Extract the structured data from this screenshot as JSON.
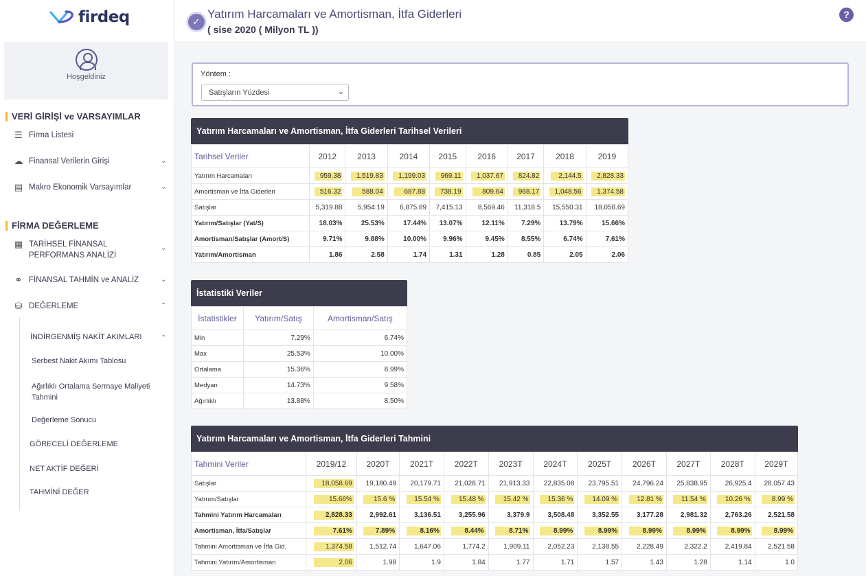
{
  "brand": {
    "name": "firdeq"
  },
  "welcome": {
    "text": "Hoşgeldiniz"
  },
  "sidebar": {
    "section1": "VERİ GİRİŞİ ve VARSAYIMLAR",
    "firm_list": "Firma Listesi",
    "financial_input": "Finansal Verilerin Girişi",
    "macro": "Makro Ekonomik Varsayımlar",
    "section2": "FİRMA DEĞERLEME",
    "historical_line1": "TARİHSEL FİNANSAL",
    "historical_line2": "PERFORMANS ANALİZİ",
    "forecast": "FİNANSAL TAHMİN ve ANALİZ",
    "valuation": "DEĞERLEME",
    "dcf": "İNDİRGENMİŞ NAKİT AKIMLARI",
    "fcf_table": "Serbest Nakit Akımı Tablosu",
    "wacc_line1": "Ağırlıklı Ortalama Sermaye Maliyeti",
    "wacc_line2": "Tahmini",
    "valuation_result": "Değerleme Sonucu",
    "relative": "GÖRECELİ DEĞERLEME",
    "net_asset": "NET AKTİF DEĞERİ",
    "estimated": "TAHMİNİ DEĞER"
  },
  "header": {
    "title": "Yatırım Harcamaları ve Amortisman, İtfa Giderleri",
    "subtitle": "( sise 2020 ( Milyon TL ))"
  },
  "method": {
    "label": "Yöntem :",
    "selected": "Satışların Yüzdesi"
  },
  "historical": {
    "title": "Yatırım Harcamaları ve Amortisman, İtfa Giderleri Tarihsel Verileri",
    "col0": "Tarihsel Veriler",
    "years": [
      "2012",
      "2013",
      "2014",
      "2015",
      "2016",
      "2017",
      "2018",
      "2019"
    ],
    "rows": [
      {
        "label": "Yatırım Harcamaları",
        "values": [
          "959.38",
          "1,519.83",
          "1,199.03",
          "969.11",
          "1,037.67",
          "824.82",
          "2,144.5",
          "2,828.33"
        ]
      },
      {
        "label": "Amortisman ve İtfa Giderleri",
        "values": [
          "516.32",
          "588.04",
          "687.88",
          "738.19",
          "809.64",
          "968.17",
          "1,048.56",
          "1,374.58"
        ]
      },
      {
        "label": "Satışlar",
        "values": [
          "5,319.88",
          "5,954.19",
          "6,875.89",
          "7,415.13",
          "8,569.46",
          "11,318.5",
          "15,550.31",
          "18,058.69"
        ]
      },
      {
        "label": "Yatırım/Satışlar (Yat/S)",
        "values": [
          "18.03%",
          "25.53%",
          "17.44%",
          "13.07%",
          "12.11%",
          "7.29%",
          "13.79%",
          "15.66%"
        ]
      },
      {
        "label": "Amortisman/Satışlar (Amort/S)",
        "values": [
          "9.71%",
          "9.88%",
          "10.00%",
          "9.96%",
          "9.45%",
          "8.55%",
          "6.74%",
          "7.61%"
        ]
      },
      {
        "label": "Yatırım/Amortisman",
        "values": [
          "1.86",
          "2.58",
          "1.74",
          "1.31",
          "1.28",
          "0.85",
          "2.05",
          "2.06"
        ]
      }
    ]
  },
  "stats": {
    "title": "İstatistiki Veriler",
    "headers": [
      "İstatistikler",
      "Yatırım/Satış",
      "Amortisman/Satış"
    ],
    "rows": [
      {
        "label": "Min",
        "a": "7.29%",
        "b": "6.74%"
      },
      {
        "label": "Max",
        "a": "25.53%",
        "b": "10.00%"
      },
      {
        "label": "Ortalama",
        "a": "15.36%",
        "b": "8.99%"
      },
      {
        "label": "Medyan",
        "a": "14.73%",
        "b": "9.58%"
      },
      {
        "label": "Ağırlıklı",
        "a": "13.88%",
        "b": "8.50%"
      }
    ]
  },
  "forecast": {
    "title": "Yatırım Harcamaları ve Amortisman, İtfa Giderleri Tahmini",
    "col0": "Tahmini Veriler",
    "years": [
      "2019/12",
      "2020T",
      "2021T",
      "2022T",
      "2023T",
      "2024T",
      "2025T",
      "2026T",
      "2027T",
      "2028T",
      "2029T"
    ],
    "rows": [
      {
        "label": "Satışlar",
        "values": [
          "18,058.69",
          "19,180.49",
          "20,179.71",
          "21,028.71",
          "21,913.33",
          "22,835.08",
          "23,795.51",
          "24,796.24",
          "25,838.95",
          "26,925.4",
          "28,057.43"
        ]
      },
      {
        "label": "Yatırım/Satışlar",
        "values": [
          "15.66%",
          "15.6 %",
          "15.54 %",
          "15.48 %",
          "15.42 %",
          "15.36 %",
          "14.09 %",
          "12.81 %",
          "11.54 %",
          "10.26 %",
          "8.99 %"
        ]
      },
      {
        "label": "Tahmini Yatırım Harcamaları",
        "values": [
          "2,828.33",
          "2,992.61",
          "3,136.51",
          "3,255.96",
          "3,379.9",
          "3,508.48",
          "3,352.55",
          "3,177.28",
          "2,981.32",
          "2,763.26",
          "2,521.58"
        ]
      },
      {
        "label": "Amortisman, İtfa/Satışlar",
        "values": [
          "7.61%",
          "7.89%",
          "8.16%",
          "8.44%",
          "8.71%",
          "8.99%",
          "8.99%",
          "8.99%",
          "8.99%",
          "8.99%",
          "8.99%"
        ]
      },
      {
        "label": "Tahmini Amortisman ve İtfa Gid.",
        "values": [
          "1,374.58",
          "1,512.74",
          "1,647.06",
          "1,774.2",
          "1,909.11",
          "2,052.23",
          "2,138.55",
          "2,228.49",
          "2,322.2",
          "2,419.84",
          "2,521.58"
        ]
      },
      {
        "label": "Tahmini Yatırım/Amortisman",
        "values": [
          "2.06",
          "1.98",
          "1.9",
          "1.84",
          "1.77",
          "1.71",
          "1.57",
          "1.43",
          "1.28",
          "1.14",
          "1.0"
        ]
      }
    ]
  },
  "colors": {
    "accent": "#f2b631",
    "header_dark": "#3d3c4d",
    "highlight": "#f5e88a",
    "primary": "#6b5fa8"
  }
}
